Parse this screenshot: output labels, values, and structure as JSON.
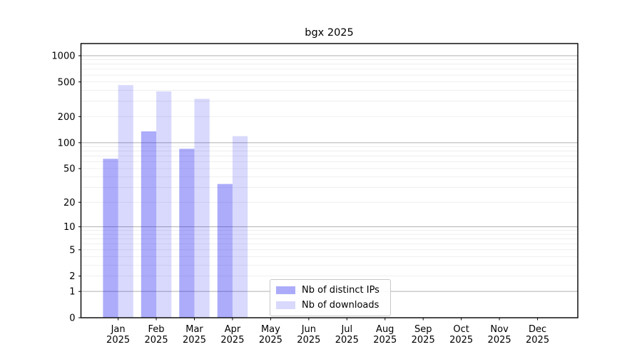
{
  "chart_data": {
    "type": "bar",
    "title": "bgx 2025",
    "categories": [
      "Jan",
      "Feb",
      "Mar",
      "Apr",
      "May",
      "Jun",
      "Jul",
      "Aug",
      "Sep",
      "Oct",
      "Nov",
      "Dec"
    ],
    "year_label": "2025",
    "series": [
      {
        "name": "Nb of distinct IPs",
        "color": "rgba(16,16,240,0.35)",
        "values": [
          65,
          135,
          85,
          33,
          0,
          0,
          0,
          0,
          0,
          0,
          0,
          0
        ]
      },
      {
        "name": "Nb of downloads",
        "color": "rgba(16,16,240,0.16)",
        "values": [
          460,
          390,
          320,
          119,
          0,
          0,
          0,
          0,
          0,
          0,
          0,
          0
        ]
      }
    ],
    "yscale": "log10(1+x)",
    "y_ticks": [
      0,
      1,
      2,
      5,
      10,
      20,
      50,
      100,
      200,
      500,
      1000
    ],
    "ylim": [
      0,
      1400
    ],
    "grid": "both",
    "legend_position": "inside-bottom-center",
    "colors": {
      "major_grid": "#b0b0b0",
      "minor_grid": "#ebebeb",
      "axis": "#000000",
      "background": "#ffffff"
    }
  }
}
